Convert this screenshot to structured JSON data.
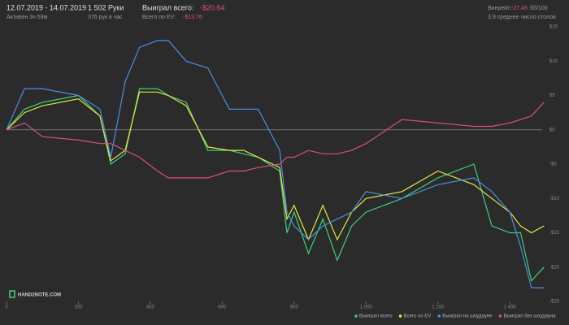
{
  "header": {
    "date_range": "12.07.2019 - 14.07.2019",
    "active": "Активен 3ч 59м",
    "hands": "1 502 Руки",
    "hands_per_hour": "376 рук в час",
    "won_label": "Выиграл всего:",
    "won_value": "-$20.64",
    "ev_label": "Всего по EV:",
    "ev_value": "-$13.76",
    "winrate_label": "Винрейт:",
    "winrate_value": "-27.48",
    "winrate_unit": "бб/100",
    "tables": "3.9 среднее число столов"
  },
  "logo": "HAND2NOTE.COM",
  "chart_data": {
    "type": "line",
    "x": [
      0,
      50,
      100,
      200,
      260,
      290,
      330,
      370,
      420,
      450,
      500,
      560,
      620,
      660,
      700,
      760,
      780,
      800,
      840,
      880,
      920,
      960,
      1000,
      1100,
      1200,
      1300,
      1350,
      1400,
      1430,
      1460,
      1495
    ],
    "series": [
      {
        "name": "Выиграл всего",
        "color": "#3ecf7e",
        "values": [
          0,
          3,
          4,
          5,
          2,
          -5,
          -3.5,
          6,
          6,
          5,
          4,
          -3,
          -3,
          -3.5,
          -4,
          -6,
          -15,
          -12,
          -18,
          -13,
          -19,
          -14,
          -12,
          -10,
          -7,
          -5,
          -14,
          -15,
          -15,
          -22,
          -20
        ]
      },
      {
        "name": "Всего по EV",
        "color": "#e6e83c",
        "values": [
          0,
          2.5,
          3.5,
          4.5,
          2,
          -4.5,
          -3,
          5.5,
          5.5,
          5,
          3.5,
          -2.5,
          -3,
          -3,
          -4,
          -5.5,
          -13,
          -11,
          -16,
          -11,
          -16,
          -12,
          -10,
          -9,
          -6,
          -8,
          -10,
          -12,
          -14,
          -15,
          -14
        ]
      },
      {
        "name": "Выиграл на шоудауне",
        "color": "#4a8fe0",
        "values": [
          0,
          6,
          6,
          5,
          3,
          -4,
          7,
          12,
          13,
          13,
          10,
          9,
          3,
          3,
          3,
          -3,
          -12,
          -14,
          -16,
          -14,
          -13,
          -12,
          -9,
          -10,
          -8,
          -7,
          -9,
          -12,
          -17,
          -23,
          -23
        ]
      },
      {
        "name": "Выиграл без шоудауна",
        "color": "#d9507c",
        "values": [
          0,
          1,
          -1,
          -1.5,
          -2,
          -2,
          -3,
          -4,
          -6,
          -7,
          -7,
          -7,
          -6,
          -6,
          -5.5,
          -5,
          -4,
          -4,
          -3,
          -3.5,
          -3.5,
          -3,
          -2,
          1.5,
          1,
          0.5,
          0.5,
          1,
          1.5,
          2,
          4
        ]
      }
    ],
    "xlim": [
      0,
      1490
    ],
    "xticks": [
      0,
      200,
      400,
      600,
      800,
      {
        "value": 1000,
        "label": "1 000"
      },
      {
        "value": 1200,
        "label": "1 200"
      },
      {
        "value": 1400,
        "label": "1 400"
      }
    ],
    "ylim": [
      -25,
      15
    ],
    "yticks": [
      {
        "value": 15,
        "label": "$15"
      },
      {
        "value": 10,
        "label": "$10"
      },
      {
        "value": 5,
        "label": "$5"
      },
      {
        "value": 0,
        "label": "$0"
      },
      {
        "value": -5,
        "label": "-$5"
      },
      {
        "value": -10,
        "label": "-$10"
      },
      {
        "value": -15,
        "label": "-$15"
      },
      {
        "value": -20,
        "label": "-$20"
      },
      {
        "value": -25,
        "label": "-$25"
      }
    ],
    "zero_line": true
  }
}
